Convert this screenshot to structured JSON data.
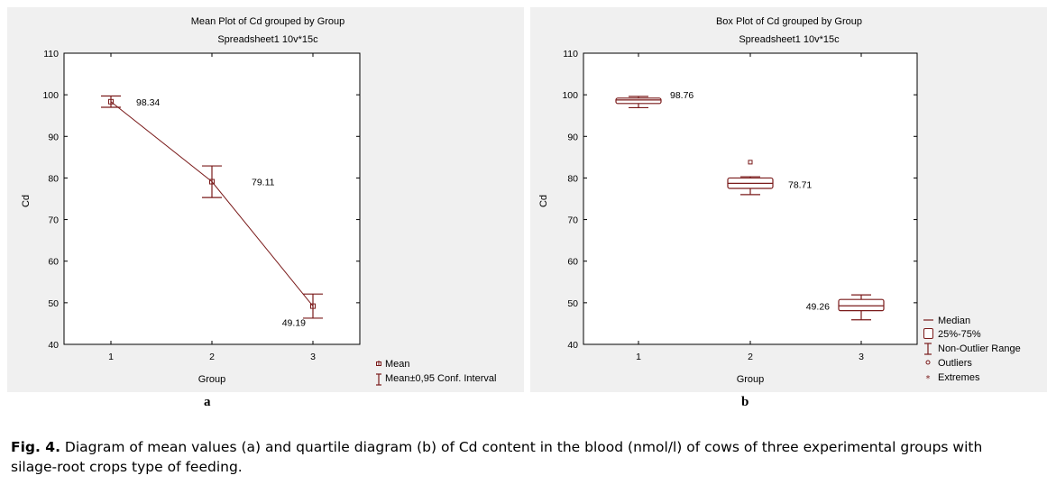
{
  "colors": {
    "series": "#7a1a1a",
    "panel_bg": "#f0f0f0",
    "axis": "#000000"
  },
  "chart_data": [
    {
      "type": "line",
      "title": "Mean Plot of Cd grouped by  Group",
      "subtitle": "Spreadsheet1 10v*15c",
      "xlabel": "Group",
      "ylabel": "Cd",
      "categories": [
        "1",
        "2",
        "3"
      ],
      "ylim": [
        40,
        110
      ],
      "yticks": [
        "40",
        "50",
        "60",
        "70",
        "80",
        "90",
        "100",
        "110"
      ],
      "series": [
        {
          "name": "Mean",
          "values": [
            98.34,
            79.11,
            49.19
          ],
          "ci_low": [
            97.0,
            75.3,
            46.3
          ],
          "ci_high": [
            99.7,
            82.9,
            52.1
          ]
        }
      ],
      "data_labels": [
        "98.34",
        "79.11",
        "49.19"
      ],
      "legend": [
        "Mean",
        "Mean±0,95 Conf. Interval"
      ]
    },
    {
      "type": "box",
      "title": "Box Plot of Cd grouped by  Group",
      "subtitle": "Spreadsheet1 10v*15c",
      "xlabel": "Group",
      "ylabel": "Cd",
      "categories": [
        "1",
        "2",
        "3"
      ],
      "ylim": [
        40,
        110
      ],
      "yticks": [
        "40",
        "50",
        "60",
        "70",
        "80",
        "90",
        "100",
        "110"
      ],
      "boxes": [
        {
          "median": 98.76,
          "q1": 97.9,
          "q3": 99.2,
          "min": 96.9,
          "max": 99.6,
          "outliers": []
        },
        {
          "median": 78.71,
          "q1": 77.5,
          "q3": 80.0,
          "min": 76.0,
          "max": 80.3,
          "outliers": [
            83.8
          ]
        },
        {
          "median": 49.26,
          "q1": 48.1,
          "q3": 50.8,
          "min": 45.9,
          "max": 51.9,
          "outliers": []
        }
      ],
      "data_labels": [
        "98.76",
        "78.71",
        "49.26"
      ],
      "legend": [
        "Median",
        "25%-75%",
        "Non-Outlier Range",
        "Outliers",
        "Extremes"
      ]
    }
  ],
  "panels": {
    "a": "a",
    "b": "b"
  },
  "caption": {
    "label": "Fig. 4.",
    "text": " Diagram of mean values (a) and quartile diagram (b) of Cd content in the blood (nmol/l) of cows of three experimental groups with silage-root crops type of feeding."
  }
}
